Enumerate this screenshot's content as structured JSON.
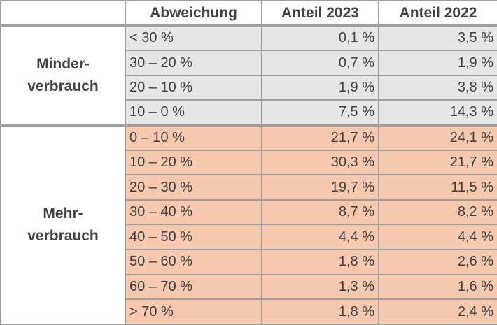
{
  "header": {
    "corner": "",
    "col_range": "Abweichung",
    "col_2023": "Anteil 2023",
    "col_2022": "Anteil 2022"
  },
  "groups": {
    "minder": {
      "line1": "Minder-",
      "line2": "verbrauch"
    },
    "mehr": {
      "line1": "Mehr-",
      "line2": "verbrauch"
    }
  },
  "rows": {
    "minder": [
      {
        "range": "< 30 %",
        "y2023": "0,1 %",
        "y2022": "3,5 %"
      },
      {
        "range": "30 – 20 %",
        "y2023": "0,7 %",
        "y2022": "1,9 %"
      },
      {
        "range": "20 – 10 %",
        "y2023": "1,9 %",
        "y2022": "3,8 %"
      },
      {
        "range": "10 – 0 %",
        "y2023": "7,5 %",
        "y2022": "14,3 %"
      }
    ],
    "mehr": [
      {
        "range": "0 – 10 %",
        "y2023": "21,7 %",
        "y2022": "24,1 %"
      },
      {
        "range": "10 – 20 %",
        "y2023": "30,3 %",
        "y2022": "21,7 %"
      },
      {
        "range": "20 – 30 %",
        "y2023": "19,7 %",
        "y2022": "11,5 %"
      },
      {
        "range": "30 – 40 %",
        "y2023": "8,7 %",
        "y2022": "8,2 %"
      },
      {
        "range": "40 – 50 %",
        "y2023": "4,4 %",
        "y2022": "4,4 %"
      },
      {
        "range": "50 – 60 %",
        "y2023": "1,8 %",
        "y2022": "2,6 %"
      },
      {
        "range": "60 – 70 %",
        "y2023": "1,3 %",
        "y2022": "1,6 %"
      },
      {
        "range": "> 70 %",
        "y2023": "1,8 %",
        "y2022": "2,4 %"
      }
    ]
  },
  "colors": {
    "minder_fill": "#e6e6e6",
    "mehr_fill": "#f6c8ae",
    "grid": "#9e9e9e",
    "text": "#404040"
  }
}
